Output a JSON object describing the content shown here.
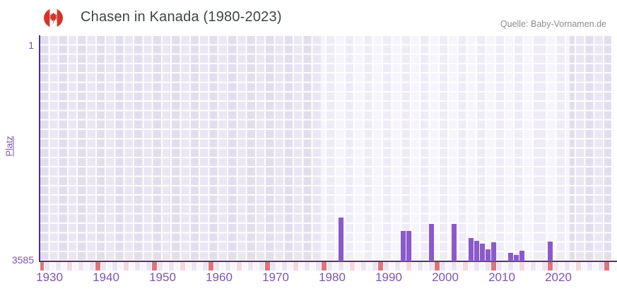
{
  "header": {
    "title": "Chasen in Kanada (1980-2023)",
    "flag_icon": "canada-flag-icon",
    "source": "Quelle: Baby-Vornamen.de"
  },
  "chart_data": {
    "type": "bar",
    "title": "Chasen in Kanada (1980-2023)",
    "ylabel": "Platz",
    "y_axis": {
      "top_tick_label": "1",
      "bottom_tick_label": "3585",
      "min": 1,
      "max": 3585,
      "inverted": true
    },
    "x_axis": {
      "tick_labels": [
        "1930",
        "1940",
        "1950",
        "1960",
        "1970",
        "1980",
        "1990",
        "2000",
        "2010",
        "2020"
      ],
      "range_years": [
        1929,
        2029
      ],
      "red_marker_rule": "years ending in 9",
      "pink_marker_rule": "years ending in 4"
    },
    "highlight_band_years": [
      1979,
      2022
    ],
    "series": [
      {
        "name": "Platz",
        "points": [
          {
            "year": 1982,
            "rank": 2878
          },
          {
            "year": 1993,
            "rank": 3105
          },
          {
            "year": 1994,
            "rank": 3105
          },
          {
            "year": 1998,
            "rank": 2989
          },
          {
            "year": 2002,
            "rank": 2983
          },
          {
            "year": 2005,
            "rank": 3218
          },
          {
            "year": 2006,
            "rank": 3261
          },
          {
            "year": 2007,
            "rank": 3312
          },
          {
            "year": 2008,
            "rank": 3410
          },
          {
            "year": 2009,
            "rank": 3292
          },
          {
            "year": 2012,
            "rank": 3465
          },
          {
            "year": 2013,
            "rank": 3500
          },
          {
            "year": 2014,
            "rank": 3436
          },
          {
            "year": 2019,
            "rank": 3273
          }
        ]
      }
    ],
    "legend": null,
    "grid": "checkerboard"
  },
  "colors": {
    "bar": "#8a5ac8",
    "axis_line": "#512e8e",
    "tick_text": "#7a55b4",
    "title_text": "#3f4446",
    "source_text": "#8f8f8f",
    "strip_red": "#e0737b",
    "strip_pink": "#f4d7e1",
    "strip_even": "#e9e5f3",
    "strip_odd": "#f8f6fc",
    "flag_red": "#d4342c"
  }
}
